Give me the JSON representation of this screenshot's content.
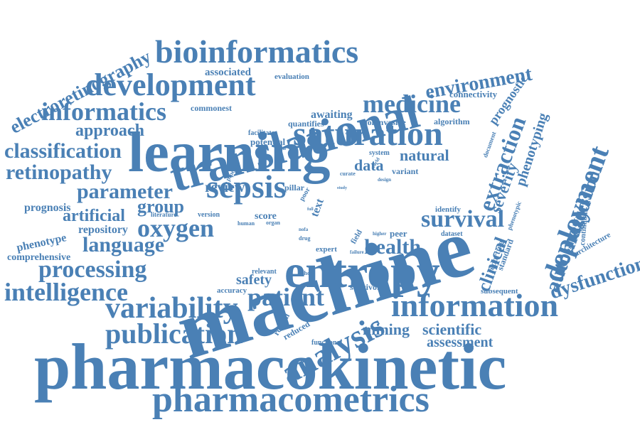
{
  "color": "#4a80b5",
  "words": [
    "pharmacokinetic",
    "machine",
    "learning",
    "translational",
    "entropy",
    "pharmacometrics",
    "saturation",
    "bioinformatics",
    "analysis",
    "information",
    "development",
    "sepsis",
    "variability",
    "publication",
    "deployment",
    "intelligence",
    "processing",
    "informatics",
    "medicine",
    "patient",
    "survival",
    "extraction",
    "environment",
    "oxygen",
    "classification",
    "retinopathy",
    "parameter",
    "health",
    "language",
    "automated",
    "dysfunction",
    "clinical",
    "approach",
    "electroretinography",
    "group",
    "artificial",
    "regression",
    "mining",
    "scientific",
    "severity",
    "phenotyping",
    "assessment",
    "safety",
    "review",
    "natural",
    "data",
    "prognostic",
    "repository",
    "phenotype",
    "prognosis",
    "comprehensive",
    "associated",
    "commonest",
    "connectivity",
    "awaiting",
    "algorithm",
    "noninvasive",
    "quantifies",
    "potential",
    "facilitate",
    "evaluation",
    "system",
    "variant",
    "curate",
    "pillar",
    "poor",
    "text",
    "score",
    "literature",
    "version",
    "human",
    "organ",
    "nofa",
    "drug",
    "full",
    "expert",
    "field",
    "peer",
    "higher",
    "failure",
    "dataset",
    "identify",
    "standard",
    "reporting",
    "phenotypic",
    "prediction",
    "architecture",
    "continuous",
    "subsequent",
    "relevant",
    "cohort",
    "survivor",
    "accuracy",
    "retinal",
    "reduced",
    "functional",
    "pipeline",
    "signal",
    "study",
    "design",
    "world",
    "document",
    "real"
  ]
}
